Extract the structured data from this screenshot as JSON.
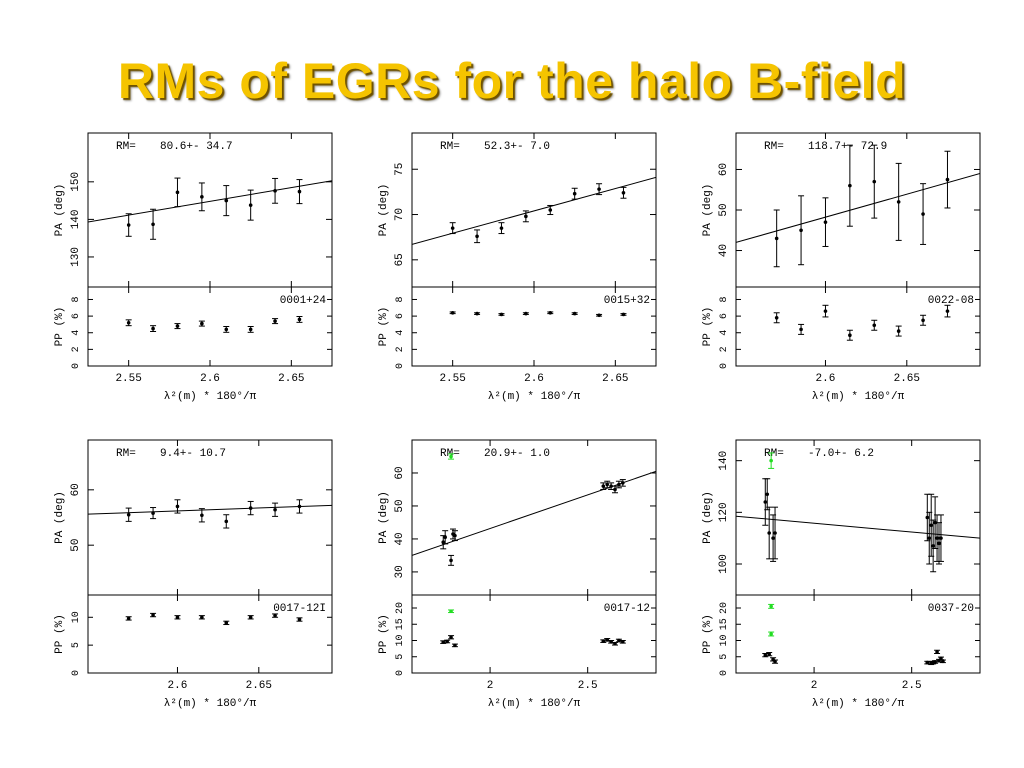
{
  "slide": {
    "title": "RMs of EGRs for the halo B-field"
  },
  "chart_data": [
    {
      "type": "scatter",
      "source": "0001+24",
      "rm_label": "RM=",
      "rm_text": "80.6+- 34.7",
      "xlabel": "λ²(m) * 180°/π",
      "pa_ylabel": "PA (deg)",
      "pp_ylabel": "PP (%)",
      "xlim": [
        2.525,
        2.675
      ],
      "xticks": [
        2.55,
        2.6,
        2.65
      ],
      "xticklabels": [
        "2.55",
        "2.6",
        "2.65"
      ],
      "pa_ylim": [
        122,
        163
      ],
      "pa_yticks": [
        130,
        140,
        150
      ],
      "pp_ylim": [
        0,
        9.5
      ],
      "pp_yticks": [
        0,
        2,
        4,
        6,
        8
      ],
      "fit_line": [
        [
          2.525,
          139.3
        ],
        [
          2.675,
          150.3
        ]
      ],
      "pa_points": [
        {
          "x": 2.55,
          "y": 138.5,
          "err": 3.0
        },
        {
          "x": 2.565,
          "y": 138.7,
          "err": 4.0
        },
        {
          "x": 2.58,
          "y": 147.2,
          "err": 3.8
        },
        {
          "x": 2.595,
          "y": 146.0,
          "err": 3.7
        },
        {
          "x": 2.61,
          "y": 145.0,
          "err": 4.0
        },
        {
          "x": 2.625,
          "y": 143.8,
          "err": 4.0
        },
        {
          "x": 2.64,
          "y": 147.6,
          "err": 3.3
        },
        {
          "x": 2.655,
          "y": 147.4,
          "err": 3.2
        }
      ],
      "pp_points": [
        {
          "x": 2.55,
          "y": 5.2,
          "err": 0.35
        },
        {
          "x": 2.565,
          "y": 4.5,
          "err": 0.35
        },
        {
          "x": 2.58,
          "y": 4.8,
          "err": 0.3
        },
        {
          "x": 2.595,
          "y": 5.1,
          "err": 0.3
        },
        {
          "x": 2.61,
          "y": 4.4,
          "err": 0.35
        },
        {
          "x": 2.625,
          "y": 4.4,
          "err": 0.35
        },
        {
          "x": 2.64,
          "y": 5.4,
          "err": 0.3
        },
        {
          "x": 2.655,
          "y": 5.6,
          "err": 0.35
        }
      ]
    },
    {
      "type": "scatter",
      "source": "0015+32",
      "rm_label": "RM=",
      "rm_text": "52.3+- 7.0",
      "xlabel": "λ²(m) * 180°/π",
      "pa_ylabel": "PA (deg)",
      "pp_ylabel": "PP (%)",
      "xlim": [
        2.525,
        2.675
      ],
      "xticks": [
        2.55,
        2.6,
        2.65
      ],
      "xticklabels": [
        "2.55",
        "2.6",
        "2.65"
      ],
      "pa_ylim": [
        62,
        79
      ],
      "pa_yticks": [
        65,
        70,
        75
      ],
      "pp_ylim": [
        0,
        9.5
      ],
      "pp_yticks": [
        0,
        2,
        4,
        6,
        8
      ],
      "fit_line": [
        [
          2.525,
          66.7
        ],
        [
          2.675,
          74.1
        ]
      ],
      "pa_points": [
        {
          "x": 2.55,
          "y": 68.5,
          "err": 0.6
        },
        {
          "x": 2.565,
          "y": 67.6,
          "err": 0.7
        },
        {
          "x": 2.58,
          "y": 68.5,
          "err": 0.6
        },
        {
          "x": 2.595,
          "y": 69.8,
          "err": 0.6
        },
        {
          "x": 2.61,
          "y": 70.5,
          "err": 0.5
        },
        {
          "x": 2.625,
          "y": 72.3,
          "err": 0.6
        },
        {
          "x": 2.64,
          "y": 72.8,
          "err": 0.6
        },
        {
          "x": 2.655,
          "y": 72.4,
          "err": 0.6
        }
      ],
      "pp_points": [
        {
          "x": 2.55,
          "y": 6.4,
          "err": 0.1
        },
        {
          "x": 2.565,
          "y": 6.3,
          "err": 0.1
        },
        {
          "x": 2.58,
          "y": 6.2,
          "err": 0.1
        },
        {
          "x": 2.595,
          "y": 6.3,
          "err": 0.1
        },
        {
          "x": 2.61,
          "y": 6.4,
          "err": 0.1
        },
        {
          "x": 2.625,
          "y": 6.3,
          "err": 0.1
        },
        {
          "x": 2.64,
          "y": 6.1,
          "err": 0.1
        },
        {
          "x": 2.655,
          "y": 6.2,
          "err": 0.1
        }
      ]
    },
    {
      "type": "scatter",
      "source": "0022-08",
      "rm_label": "RM=",
      "rm_text": "118.7+- 72.9",
      "xlabel": "λ²(m) * 180°/π",
      "pa_ylabel": "PA (deg)",
      "pp_ylabel": "PP (%)",
      "xlim": [
        2.545,
        2.695
      ],
      "xticks": [
        2.6,
        2.65
      ],
      "xticklabels": [
        "2.6",
        "2.65"
      ],
      "pa_ylim": [
        31,
        69
      ],
      "pa_yticks": [
        40,
        50,
        60
      ],
      "pp_ylim": [
        0,
        9.5
      ],
      "pp_yticks": [
        0,
        2,
        4,
        6,
        8
      ],
      "fit_line": [
        [
          2.545,
          42.0
        ],
        [
          2.695,
          59.0
        ]
      ],
      "pa_points": [
        {
          "x": 2.57,
          "y": 43.0,
          "err": 7.0
        },
        {
          "x": 2.585,
          "y": 45.0,
          "err": 8.5
        },
        {
          "x": 2.6,
          "y": 47.0,
          "err": 6.0
        },
        {
          "x": 2.615,
          "y": 56.0,
          "err": 10.0
        },
        {
          "x": 2.63,
          "y": 57.0,
          "err": 9.0
        },
        {
          "x": 2.645,
          "y": 52.0,
          "err": 9.5
        },
        {
          "x": 2.66,
          "y": 49.0,
          "err": 7.5
        },
        {
          "x": 2.675,
          "y": 57.5,
          "err": 7.0
        }
      ],
      "pp_points": [
        {
          "x": 2.57,
          "y": 5.8,
          "err": 0.6
        },
        {
          "x": 2.585,
          "y": 4.4,
          "err": 0.6
        },
        {
          "x": 2.6,
          "y": 6.6,
          "err": 0.7
        },
        {
          "x": 2.615,
          "y": 3.7,
          "err": 0.6
        },
        {
          "x": 2.63,
          "y": 4.9,
          "err": 0.6
        },
        {
          "x": 2.645,
          "y": 4.2,
          "err": 0.6
        },
        {
          "x": 2.66,
          "y": 5.5,
          "err": 0.6
        },
        {
          "x": 2.675,
          "y": 6.6,
          "err": 0.7
        }
      ]
    },
    {
      "type": "scatter",
      "source": "0017-12I",
      "rm_label": "RM=",
      "rm_text": "9.4+- 10.7",
      "xlabel": "λ²(m) * 180°/π",
      "pa_ylabel": "PA (deg)",
      "pp_ylabel": "PP (%)",
      "xlim": [
        2.545,
        2.695
      ],
      "xticks": [
        2.6,
        2.65
      ],
      "xticklabels": [
        "2.6",
        "2.65"
      ],
      "pa_ylim": [
        41,
        69
      ],
      "pa_yticks": [
        50,
        60
      ],
      "pp_ylim": [
        0,
        14
      ],
      "pp_yticks": [
        0,
        5,
        10
      ],
      "fit_line": [
        [
          2.545,
          55.6
        ],
        [
          2.695,
          57.2
        ]
      ],
      "pa_points": [
        {
          "x": 2.57,
          "y": 55.5,
          "err": 1.2
        },
        {
          "x": 2.585,
          "y": 55.8,
          "err": 1.0
        },
        {
          "x": 2.6,
          "y": 57.0,
          "err": 1.2
        },
        {
          "x": 2.615,
          "y": 55.4,
          "err": 1.2
        },
        {
          "x": 2.63,
          "y": 54.3,
          "err": 1.2
        },
        {
          "x": 2.645,
          "y": 56.7,
          "err": 1.2
        },
        {
          "x": 2.66,
          "y": 56.4,
          "err": 1.2
        },
        {
          "x": 2.675,
          "y": 57.0,
          "err": 1.2
        }
      ],
      "pp_points": [
        {
          "x": 2.57,
          "y": 9.8,
          "err": 0.3
        },
        {
          "x": 2.585,
          "y": 10.4,
          "err": 0.3
        },
        {
          "x": 2.6,
          "y": 10.0,
          "err": 0.3
        },
        {
          "x": 2.615,
          "y": 10.0,
          "err": 0.3
        },
        {
          "x": 2.63,
          "y": 9.0,
          "err": 0.3
        },
        {
          "x": 2.645,
          "y": 10.0,
          "err": 0.3
        },
        {
          "x": 2.66,
          "y": 10.3,
          "err": 0.3
        },
        {
          "x": 2.675,
          "y": 9.6,
          "err": 0.3
        }
      ]
    },
    {
      "type": "scatter",
      "source": "0017-12",
      "rm_label": "RM=",
      "rm_text": "20.9+- 1.0",
      "xlabel": "λ²(m) * 180°/π",
      "pa_ylabel": "PA (deg)",
      "pp_ylabel": "PP (%)",
      "xlim": [
        1.6,
        2.85
      ],
      "xticks": [
        2,
        2.5
      ],
      "xticklabels": [
        "2",
        "2.5"
      ],
      "pa_ylim": [
        23,
        70
      ],
      "pa_yticks": [
        30,
        40,
        50,
        60
      ],
      "pp_ylim": [
        0,
        24
      ],
      "pp_yticks": [
        0,
        5,
        10,
        15,
        20
      ],
      "fit_line": [
        [
          1.6,
          35.0
        ],
        [
          2.85,
          60.5
        ]
      ],
      "pa_points": [
        {
          "x": 1.76,
          "y": 39.0,
          "err": 2.0
        },
        {
          "x": 1.77,
          "y": 40.5,
          "err": 2.0
        },
        {
          "x": 1.8,
          "y": 33.5,
          "err": 1.5
        },
        {
          "x": 1.81,
          "y": 41.5,
          "err": 1.5
        },
        {
          "x": 1.82,
          "y": 41.0,
          "err": 1.5
        },
        {
          "x": 2.58,
          "y": 56.0,
          "err": 1.0
        },
        {
          "x": 2.6,
          "y": 56.5,
          "err": 1.0
        },
        {
          "x": 2.62,
          "y": 56.0,
          "err": 1.0
        },
        {
          "x": 2.64,
          "y": 55.0,
          "err": 1.0
        },
        {
          "x": 2.66,
          "y": 56.5,
          "err": 1.0
        },
        {
          "x": 2.68,
          "y": 57.0,
          "err": 1.0
        },
        {
          "x": 1.8,
          "y": 65.0,
          "err": 0.8,
          "color": "#22dd22"
        }
      ],
      "pp_points": [
        {
          "x": 1.76,
          "y": 9.5,
          "err": 0.4
        },
        {
          "x": 1.78,
          "y": 9.7,
          "err": 0.4
        },
        {
          "x": 1.8,
          "y": 11.0,
          "err": 0.5
        },
        {
          "x": 1.82,
          "y": 8.5,
          "err": 0.4
        },
        {
          "x": 2.58,
          "y": 9.8,
          "err": 0.4
        },
        {
          "x": 2.6,
          "y": 10.2,
          "err": 0.4
        },
        {
          "x": 2.62,
          "y": 9.6,
          "err": 0.4
        },
        {
          "x": 2.64,
          "y": 9.0,
          "err": 0.4
        },
        {
          "x": 2.66,
          "y": 10.0,
          "err": 0.4
        },
        {
          "x": 2.68,
          "y": 9.6,
          "err": 0.4
        },
        {
          "x": 1.8,
          "y": 19.0,
          "err": 0.4,
          "color": "#22dd22"
        }
      ]
    },
    {
      "type": "scatter",
      "source": "0037-20",
      "rm_label": "RM=",
      "rm_text": "-7.0+- 6.2",
      "xlabel": "λ²(m) * 180°/π",
      "pa_ylabel": "PA (deg)",
      "pp_ylabel": "PP (%)",
      "xlim": [
        1.6,
        2.85
      ],
      "xticks": [
        2,
        2.5
      ],
      "xticklabels": [
        "2",
        "2.5"
      ],
      "pa_ylim": [
        88,
        148
      ],
      "pa_yticks": [
        100,
        120,
        140
      ],
      "pp_ylim": [
        0,
        24
      ],
      "pp_yticks": [
        0,
        5,
        10,
        15,
        20
      ],
      "fit_line": [
        [
          1.6,
          118.5
        ],
        [
          2.85,
          110.0
        ]
      ],
      "pa_points": [
        {
          "x": 1.75,
          "y": 124.0,
          "err": 9.0
        },
        {
          "x": 1.76,
          "y": 127.0,
          "err": 6.0
        },
        {
          "x": 1.77,
          "y": 112.0,
          "err": 10.0
        },
        {
          "x": 1.79,
          "y": 110.0,
          "err": 9.0
        },
        {
          "x": 1.8,
          "y": 112.0,
          "err": 10.0
        },
        {
          "x": 2.58,
          "y": 118.0,
          "err": 9.0
        },
        {
          "x": 2.59,
          "y": 110.0,
          "err": 10.0
        },
        {
          "x": 2.6,
          "y": 115.0,
          "err": 12.0
        },
        {
          "x": 2.61,
          "y": 107.0,
          "err": 10.0
        },
        {
          "x": 2.62,
          "y": 116.0,
          "err": 10.0
        },
        {
          "x": 2.63,
          "y": 110.0,
          "err": 9.0
        },
        {
          "x": 2.64,
          "y": 108.0,
          "err": 8.0
        },
        {
          "x": 2.65,
          "y": 110.0,
          "err": 9.0
        },
        {
          "x": 1.78,
          "y": 140.0,
          "err": 3.0,
          "color": "#22dd22"
        }
      ],
      "pp_points": [
        {
          "x": 1.75,
          "y": 5.5,
          "err": 0.5
        },
        {
          "x": 1.77,
          "y": 5.8,
          "err": 0.5
        },
        {
          "x": 1.79,
          "y": 4.2,
          "err": 0.5
        },
        {
          "x": 1.8,
          "y": 3.5,
          "err": 0.5
        },
        {
          "x": 2.58,
          "y": 3.2,
          "err": 0.4
        },
        {
          "x": 2.6,
          "y": 3.0,
          "err": 0.4
        },
        {
          "x": 2.61,
          "y": 3.2,
          "err": 0.4
        },
        {
          "x": 2.62,
          "y": 3.4,
          "err": 0.4
        },
        {
          "x": 2.63,
          "y": 6.5,
          "err": 0.5
        },
        {
          "x": 2.64,
          "y": 3.8,
          "err": 0.4
        },
        {
          "x": 2.65,
          "y": 4.5,
          "err": 0.4
        },
        {
          "x": 2.66,
          "y": 3.6,
          "err": 0.4
        },
        {
          "x": 1.78,
          "y": 20.5,
          "err": 0.6,
          "color": "#22dd22"
        },
        {
          "x": 1.78,
          "y": 12.0,
          "err": 0.6,
          "color": "#22dd22"
        }
      ]
    }
  ]
}
